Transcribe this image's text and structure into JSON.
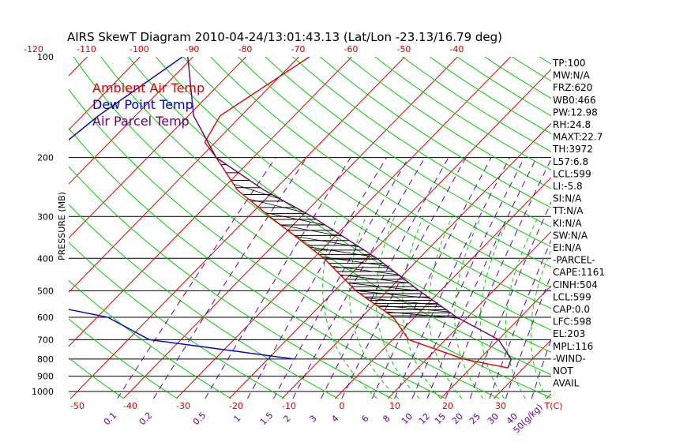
{
  "chart_data": {
    "type": "line",
    "title": "AIRS SkewT Diagram 2010-04-24/13:01:43.13 (Lat/Lon -23.13/16.79 deg)",
    "ylabel": "PRESSURE (MB)",
    "pressure_ticks": [
      "100",
      "200",
      "300",
      "400",
      "500",
      "600",
      "700",
      "800",
      "900",
      "1000"
    ],
    "top_temp_ticks": [
      "-120",
      "-110",
      "-100",
      "-90",
      "-80",
      "-70",
      "-60",
      "-50",
      "-40"
    ],
    "bottom_temp_ticks": [
      "-50",
      "-40",
      "-30",
      "-20",
      "-10",
      "0",
      "10",
      "20",
      "30",
      "T(C)"
    ],
    "mixing_ratio_ticks": [
      "0.1",
      "0.2",
      "0.5",
      "1",
      "1.5",
      "2",
      "3",
      "4",
      "6",
      "8",
      "10",
      "12",
      "15",
      "20",
      "25",
      "30",
      "40",
      "50(g/kg)"
    ],
    "ylim": [
      1050,
      100
    ],
    "colors": {
      "ambient": "#dd0000",
      "dewpoint": "#0000cc",
      "parcel": "#660066",
      "dry_adiabat": "#00cc00",
      "isotherm": "#dd0000",
      "mixing_ratio": "#660099",
      "axis_labels": "#cc0000"
    },
    "series": [
      {
        "name": "Ambient Air Temp",
        "color": "#dd0000",
        "points": [
          {
            "p": 100,
            "t": -68
          },
          {
            "p": 150,
            "t": -74
          },
          {
            "p": 180,
            "t": -72
          },
          {
            "p": 200,
            "t": -67
          },
          {
            "p": 250,
            "t": -57
          },
          {
            "p": 300,
            "t": -46
          },
          {
            "p": 400,
            "t": -28
          },
          {
            "p": 500,
            "t": -16
          },
          {
            "p": 600,
            "t": -4
          },
          {
            "p": 700,
            "t": 3
          },
          {
            "p": 800,
            "t": 17
          },
          {
            "p": 850,
            "t": 27
          }
        ]
      },
      {
        "name": "Dew Point Temp",
        "color": "#0000cc",
        "points": [
          {
            "p": 100,
            "t": -92
          },
          {
            "p": 150,
            "t": -97
          },
          {
            "p": 200,
            "t": -99
          },
          {
            "p": 250,
            "t": -96
          },
          {
            "p": 300,
            "t": -101
          },
          {
            "p": 400,
            "t": -108
          },
          {
            "p": 500,
            "t": -88
          },
          {
            "p": 600,
            "t": -58
          },
          {
            "p": 700,
            "t": -46
          },
          {
            "p": 800,
            "t": -15
          }
        ]
      },
      {
        "name": "Air Parcel Temp",
        "color": "#660066",
        "points": [
          {
            "p": 100,
            "t": -91
          },
          {
            "p": 150,
            "t": -79
          },
          {
            "p": 200,
            "t": -67
          },
          {
            "p": 250,
            "t": -52
          },
          {
            "p": 300,
            "t": -38
          },
          {
            "p": 400,
            "t": -18
          },
          {
            "p": 500,
            "t": -4
          },
          {
            "p": 600,
            "t": 8
          },
          {
            "p": 700,
            "t": 20
          },
          {
            "p": 800,
            "t": 26
          },
          {
            "p": 850,
            "t": 27
          }
        ]
      }
    ],
    "indices": [
      "TP:100",
      "MW:N/A",
      "FRZ:620",
      "WB0:466",
      "PW:12.98",
      "RH:24.8",
      "MAXT:22.7",
      "TH:3972",
      "L57:6.8",
      "LCL:599",
      "LI:-5.8",
      "SI:N/A",
      "TT:N/A",
      "KI:N/A",
      "SW:N/A",
      "EI:N/A",
      "-PARCEL-",
      "CAPE:1161",
      "CINH:504",
      "LCL:599",
      "CAP:0.0",
      "LFC:598",
      "EL:203",
      "MPL:116",
      "-WIND-",
      "NOT",
      "AVAIL"
    ]
  }
}
